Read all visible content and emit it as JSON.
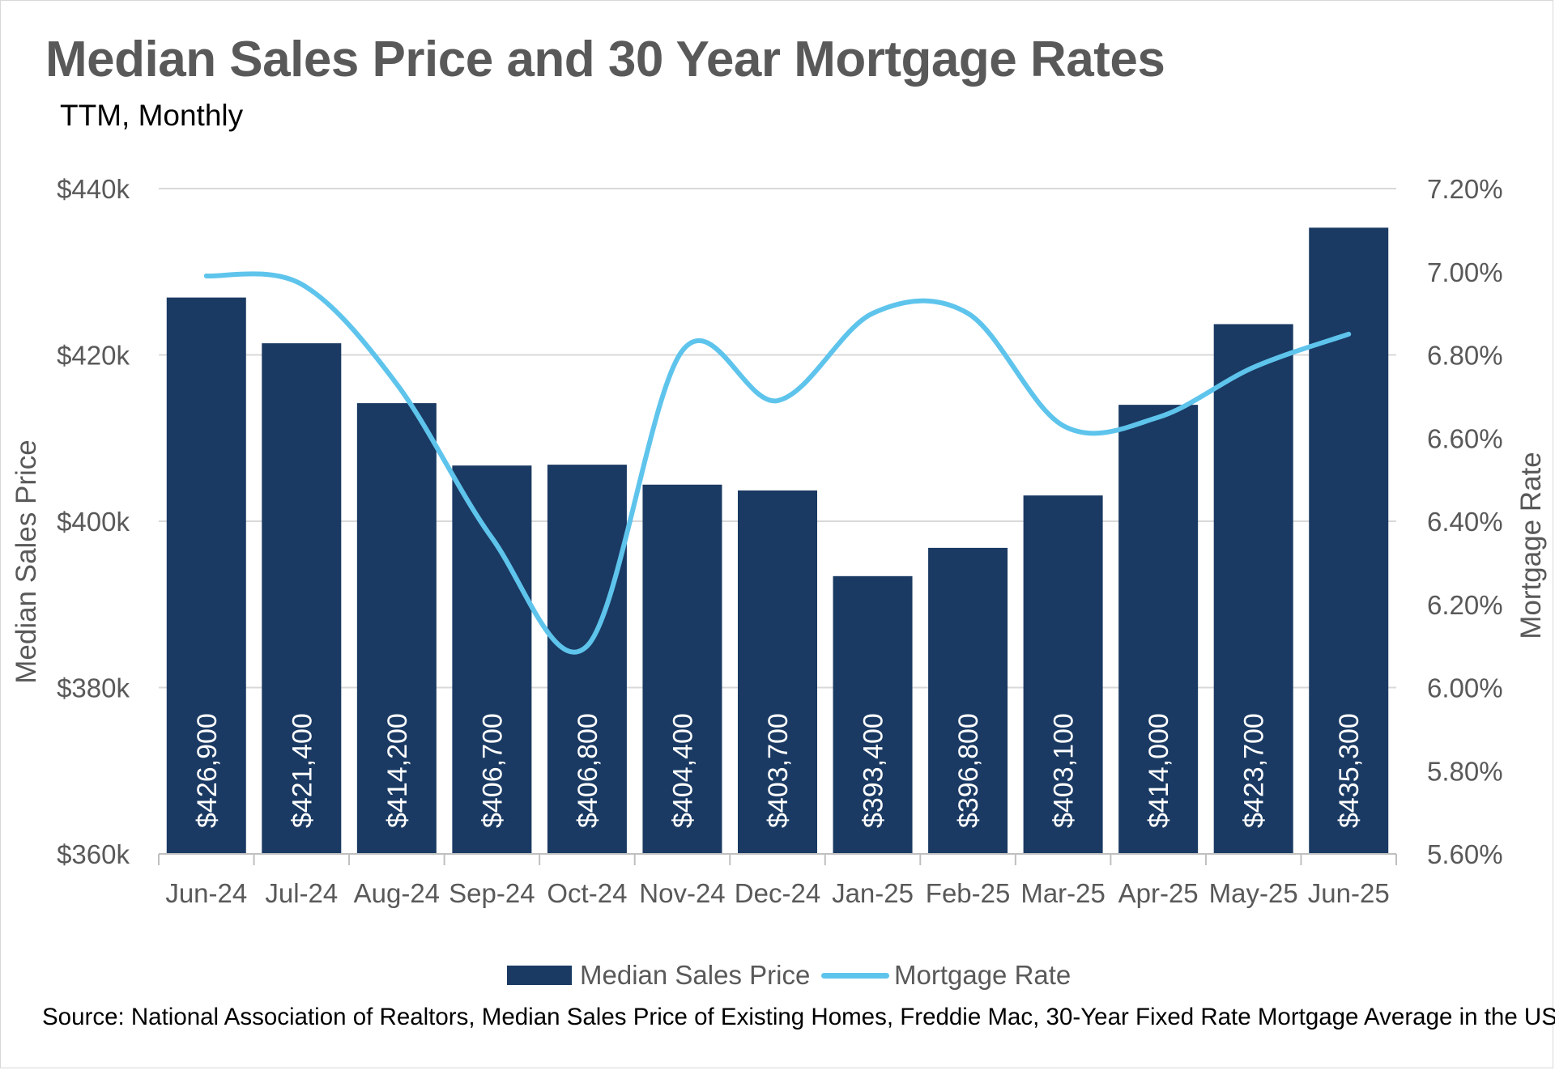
{
  "title": "Median Sales Price and 30 Year Mortgage Rates",
  "subtitle": "TTM, Monthly",
  "source": "Source: National Association of Realtors, Median Sales Price of Existing Homes, Freddie Mac, 30-Year Fixed Rate Mortgage Average in the US",
  "legend": {
    "bar_label": "Median Sales Price",
    "line_label": "Mortgage Rate"
  },
  "colors": {
    "bar": "#1a3a63",
    "line": "#5ec4ec",
    "axis_text": "#595959",
    "grid": "#d9d9d9"
  },
  "chart_data": {
    "type": "bar",
    "categories": [
      "Jun-24",
      "Jul-24",
      "Aug-24",
      "Sep-24",
      "Oct-24",
      "Nov-24",
      "Dec-24",
      "Jan-25",
      "Feb-25",
      "Mar-25",
      "Apr-25",
      "May-25",
      "Jun-25"
    ],
    "series": [
      {
        "name": "Median Sales Price",
        "type": "bar",
        "axis": "left",
        "values": [
          426900,
          421400,
          414200,
          406700,
          406800,
          404400,
          403700,
          393400,
          396800,
          403100,
          414000,
          423700,
          435300
        ],
        "data_labels": [
          "$426,900",
          "$421,400",
          "$414,200",
          "$406,700",
          "$406,800",
          "$404,400",
          "$403,700",
          "$393,400",
          "$396,800",
          "$403,100",
          "$414,000",
          "$423,700",
          "$435,300"
        ]
      },
      {
        "name": "Mortgage Rate",
        "type": "line",
        "axis": "right",
        "values": [
          6.99,
          6.97,
          6.73,
          6.36,
          6.1,
          6.81,
          6.69,
          6.9,
          6.9,
          6.63,
          6.65,
          6.77,
          6.85
        ]
      }
    ],
    "y_left": {
      "label": "Median Sales Price",
      "range": [
        360000,
        440000
      ],
      "ticks": [
        360000,
        380000,
        400000,
        420000,
        440000
      ],
      "tick_labels": [
        "$360k",
        "$380k",
        "$400k",
        "$420k",
        "$440k"
      ]
    },
    "y_right": {
      "label": "Mortgage Rate",
      "range": [
        5.6,
        7.2
      ],
      "ticks": [
        5.6,
        5.8,
        6.0,
        6.2,
        6.4,
        6.6,
        6.8,
        7.0,
        7.2
      ],
      "tick_labels": [
        "5.60%",
        "5.80%",
        "6.00%",
        "6.20%",
        "6.40%",
        "6.60%",
        "6.80%",
        "7.00%",
        "7.20%"
      ]
    },
    "grid": true,
    "legend_position": "bottom"
  }
}
